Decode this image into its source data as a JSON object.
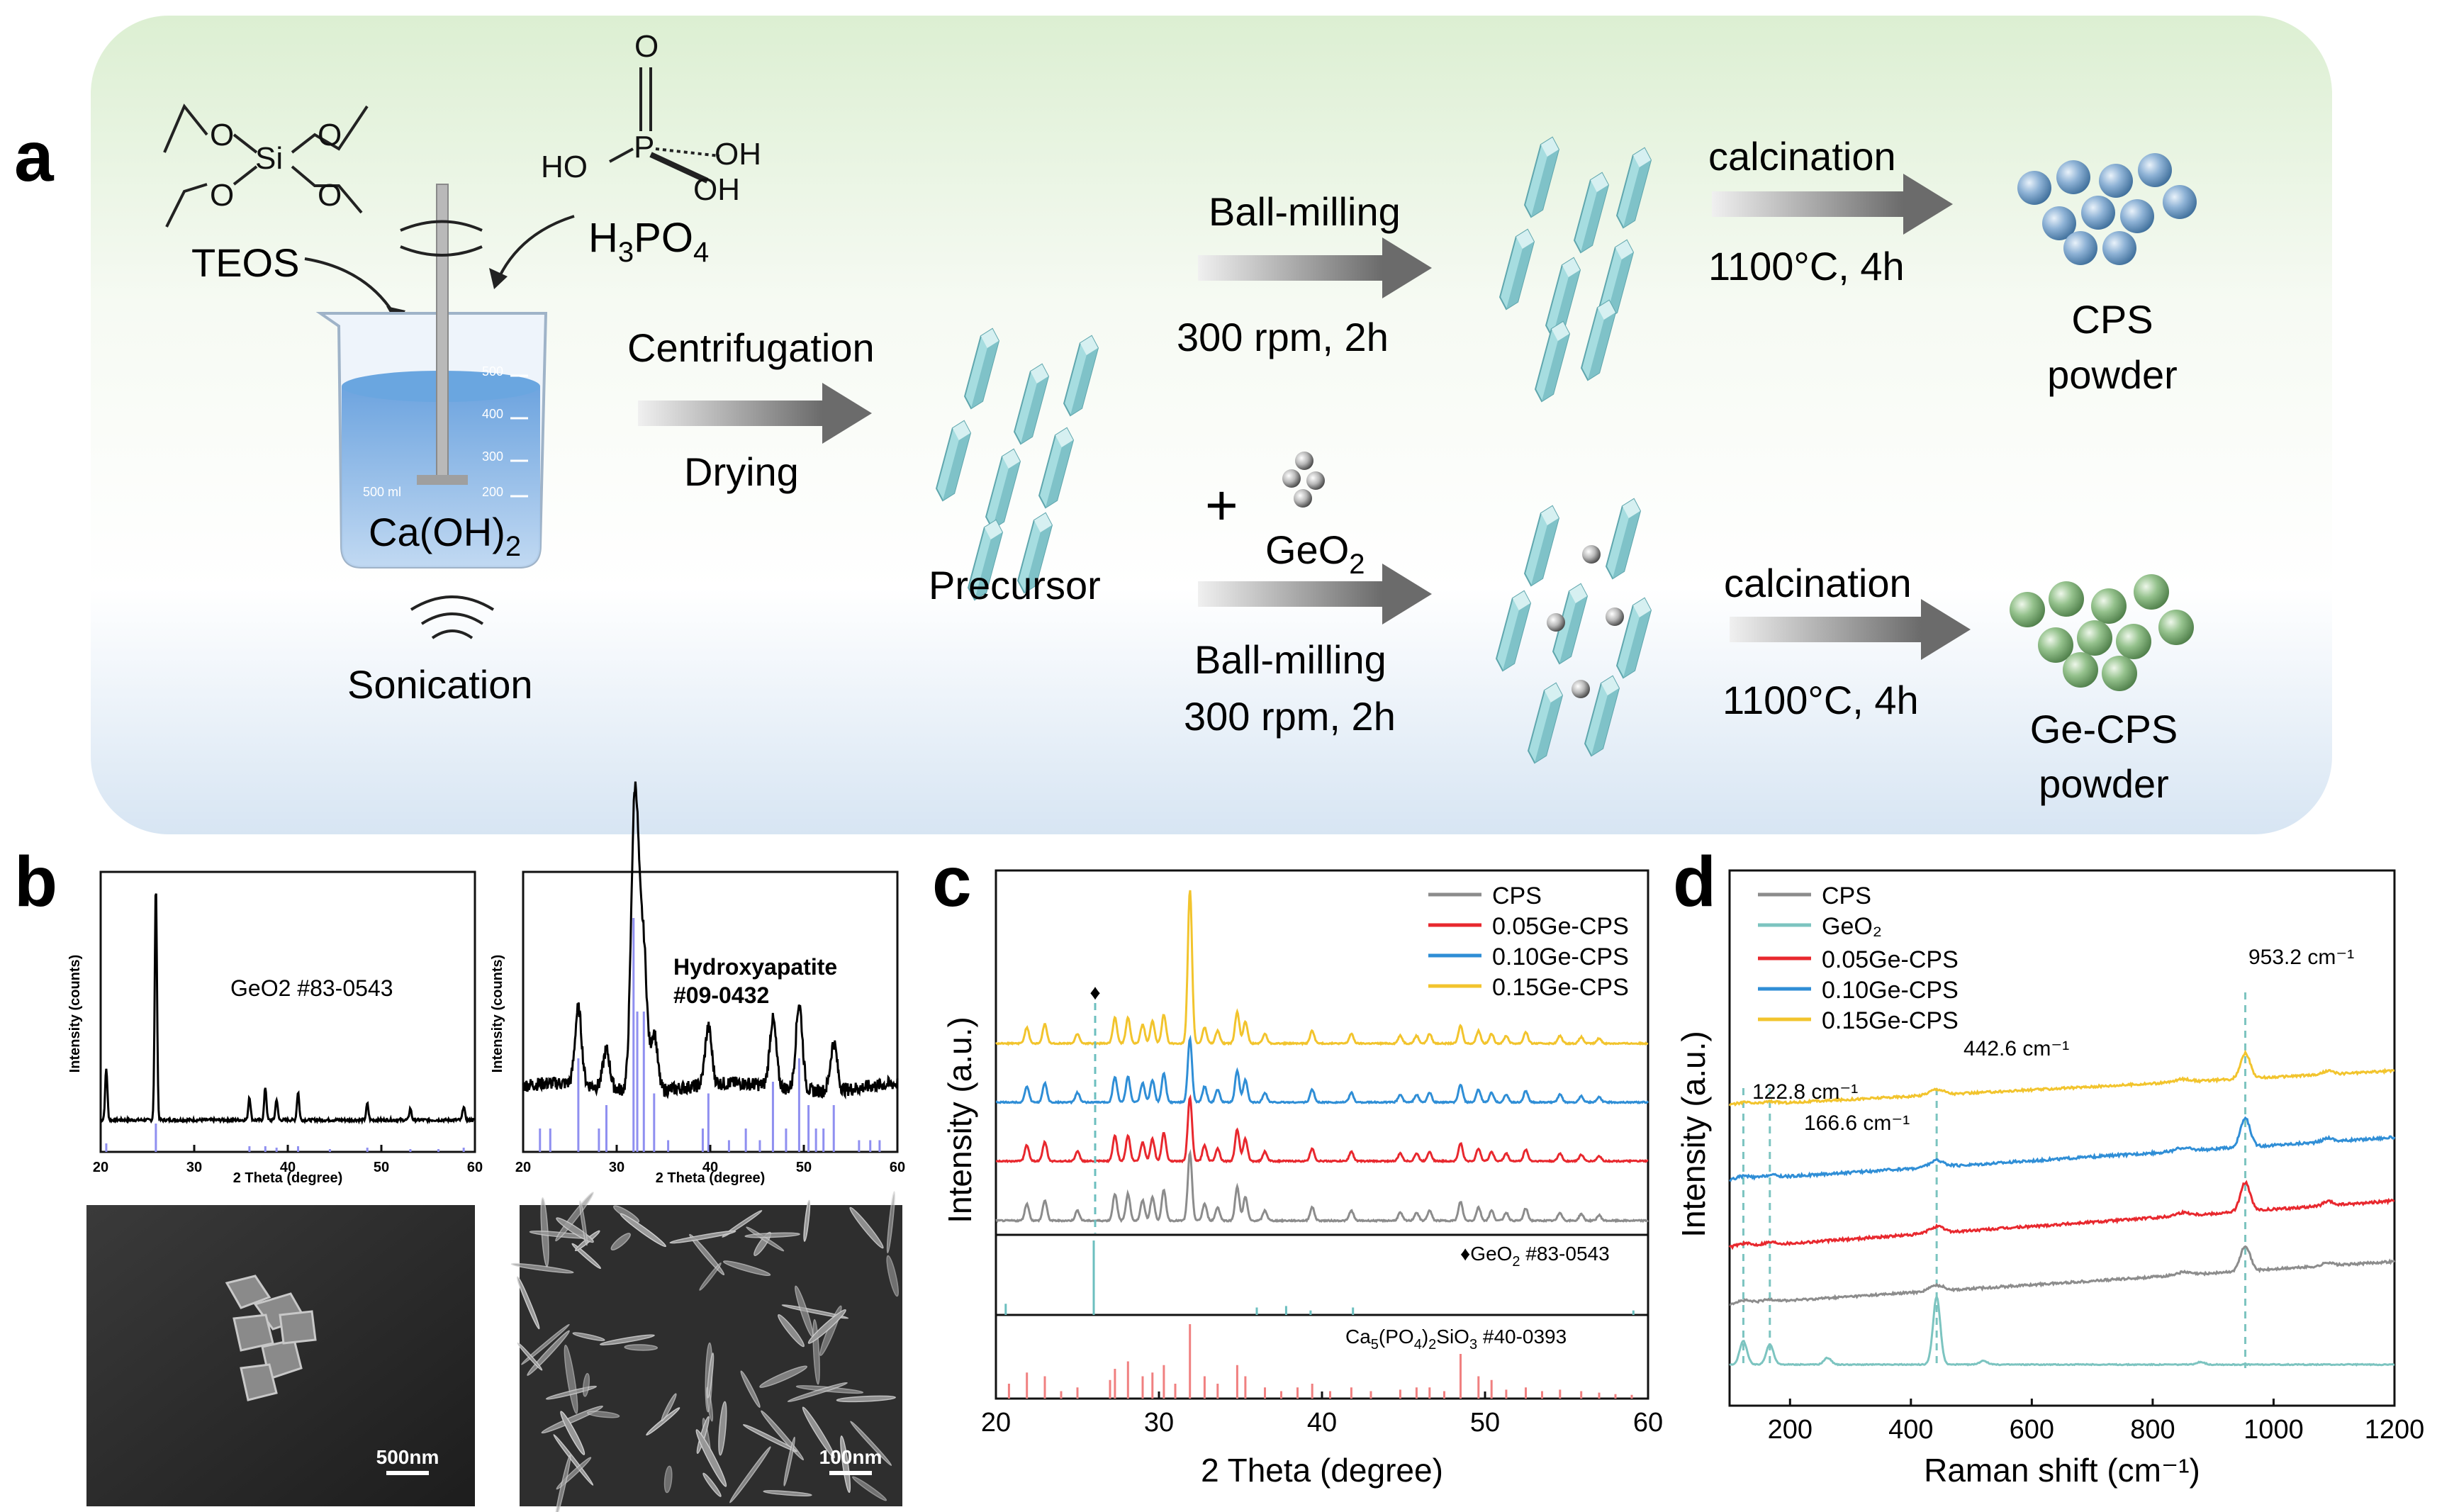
{
  "panel_labels": {
    "a": "a",
    "b": "b",
    "c": "c",
    "d": "d"
  },
  "panel_a": {
    "teos": "TEOS",
    "h3po4": {
      "main": "H",
      "sub1": "3",
      "mid": "PO",
      "sub2": "4"
    },
    "caoh2": {
      "main": "Ca(OH)",
      "sub": "2"
    },
    "sonication": "Sonication",
    "centrifugation": "Centrifugation",
    "drying": "Drying",
    "precursor": "Precursor",
    "ballmill_top": "Ball-milling",
    "rpm_top": "300 rpm, 2h",
    "plus": "+",
    "geo2": {
      "main": "GeO",
      "sub": "2"
    },
    "ballmill_bottom": "Ball-milling",
    "rpm_bottom": "300 rpm, 2h",
    "calc_top": "calcination",
    "temp_top": "1100°C, 4h",
    "calc_bottom": "calcination",
    "temp_bottom": "1100°C, 4h",
    "cps_1": "CPS",
    "cps_2": "powder",
    "gecps_1": "Ge-CPS",
    "gecps_2": "powder",
    "beaker_marks": [
      "500",
      "400",
      "300",
      "200"
    ],
    "beaker_ml": "500 ml",
    "mol_O": "O",
    "mol_Si": "Si",
    "mol_P": "P",
    "mol_HO": "HO",
    "mol_OH": "OH",
    "colors": {
      "cps_sphere": "#7fa6c8",
      "gecps_sphere": "#8fb98a",
      "crystal": "#a6dde0",
      "bg_top": "#e3f1dc",
      "bg_bottom": "#dde8f4"
    }
  },
  "chart_data": [
    {
      "id": "b-left",
      "type": "line",
      "annotation": "GeO2 #83-0543",
      "xlabel": "2 Theta (degree)",
      "ylabel": "Intensity (counts)",
      "xlim": [
        20,
        60
      ],
      "xticks": [
        20,
        30,
        40,
        50,
        60
      ],
      "grid": false,
      "series": [
        {
          "values_note": "pattern",
          "peaks": [
            [
              20.6,
              0.22
            ],
            [
              25.9,
              1.0
            ],
            [
              35.9,
              0.1
            ],
            [
              37.6,
              0.14
            ],
            [
              38.8,
              0.09
            ],
            [
              41.1,
              0.12
            ],
            [
              48.5,
              0.07
            ],
            [
              53.1,
              0.05
            ],
            [
              58.8,
              0.06
            ]
          ]
        }
      ],
      "reference_sticks": [
        [
          20.6,
          0.3
        ],
        [
          25.9,
          1.0
        ],
        [
          35.9,
          0.2
        ],
        [
          37.6,
          0.2
        ],
        [
          38.8,
          0.15
        ],
        [
          41.1,
          0.2
        ],
        [
          44.5,
          0.1
        ],
        [
          48.5,
          0.15
        ],
        [
          53.1,
          0.1
        ],
        [
          56.1,
          0.1
        ],
        [
          58.8,
          0.15
        ]
      ],
      "line_color": "#000000",
      "stick_color": "#8f8ff0"
    },
    {
      "id": "b-right",
      "type": "line",
      "annotation_1": "Hydroxyapatite",
      "annotation_2": "#09-0432",
      "xlabel": "2 Theta (degree)",
      "ylabel": "Intensity (counts)",
      "xlim": [
        20,
        60
      ],
      "xticks": [
        20,
        30,
        40,
        50,
        60
      ],
      "grid": false,
      "peaks": [
        [
          25.9,
          0.4
        ],
        [
          28.9,
          0.2
        ],
        [
          31.8,
          1.0
        ],
        [
          32.2,
          0.85
        ],
        [
          32.9,
          0.7
        ],
        [
          34.0,
          0.3
        ],
        [
          39.8,
          0.3
        ],
        [
          46.7,
          0.35
        ],
        [
          49.5,
          0.45
        ],
        [
          53.2,
          0.25
        ]
      ],
      "reference_sticks": [
        [
          21.8,
          0.1
        ],
        [
          22.9,
          0.1
        ],
        [
          25.9,
          0.4
        ],
        [
          28.1,
          0.1
        ],
        [
          28.9,
          0.2
        ],
        [
          31.8,
          1.0
        ],
        [
          32.2,
          0.6
        ],
        [
          32.9,
          0.6
        ],
        [
          34.0,
          0.25
        ],
        [
          35.5,
          0.05
        ],
        [
          39.2,
          0.1
        ],
        [
          39.8,
          0.25
        ],
        [
          42.0,
          0.05
        ],
        [
          43.8,
          0.1
        ],
        [
          45.3,
          0.05
        ],
        [
          46.7,
          0.3
        ],
        [
          48.1,
          0.1
        ],
        [
          49.5,
          0.4
        ],
        [
          50.5,
          0.2
        ],
        [
          51.3,
          0.1
        ],
        [
          52.1,
          0.1
        ],
        [
          53.2,
          0.2
        ],
        [
          55.9,
          0.05
        ],
        [
          57.1,
          0.05
        ],
        [
          58.1,
          0.05
        ]
      ],
      "line_color": "#000000",
      "stick_color": "#8f8ff0"
    },
    {
      "id": "c",
      "type": "line",
      "xlabel": "2 Theta (degree)",
      "ylabel": "Intensity (a.u.)",
      "xlim": [
        20,
        60
      ],
      "xticks": [
        20,
        30,
        40,
        50,
        60
      ],
      "legend": "top-right",
      "grid": false,
      "series": [
        {
          "name": "CPS",
          "color": "#8c8c8c"
        },
        {
          "name": "0.05Ge-CPS",
          "color": "#e8282e"
        },
        {
          "name": "0.10Ge-CPS",
          "color": "#2f8ed6"
        },
        {
          "name": "0.15Ge-CPS",
          "color": "#f2c42d"
        }
      ],
      "cps_peaks": [
        [
          21.9,
          0.25
        ],
        [
          23.0,
          0.3
        ],
        [
          25.0,
          0.15
        ],
        [
          27.3,
          0.4
        ],
        [
          28.1,
          0.4
        ],
        [
          29.0,
          0.3
        ],
        [
          29.6,
          0.35
        ],
        [
          30.3,
          0.45
        ],
        [
          31.9,
          1.0
        ],
        [
          32.8,
          0.25
        ],
        [
          33.6,
          0.2
        ],
        [
          34.8,
          0.5
        ],
        [
          35.3,
          0.35
        ],
        [
          36.5,
          0.15
        ],
        [
          39.4,
          0.2
        ],
        [
          41.8,
          0.15
        ],
        [
          44.8,
          0.12
        ],
        [
          45.8,
          0.12
        ],
        [
          46.6,
          0.15
        ],
        [
          48.5,
          0.28
        ],
        [
          49.6,
          0.2
        ],
        [
          50.4,
          0.15
        ],
        [
          51.3,
          0.12
        ],
        [
          52.5,
          0.18
        ],
        [
          54.6,
          0.12
        ],
        [
          55.9,
          0.1
        ],
        [
          57.0,
          0.08
        ]
      ],
      "marker": "♦",
      "marker_x": 26.0,
      "ref1_label_pre": "♦GeO",
      "ref1_label_sub": "2",
      "ref1_label_post": " #83-0543",
      "ref1_sticks": [
        [
          20.6,
          0.15
        ],
        [
          26.0,
          1.0
        ],
        [
          36.0,
          0.1
        ],
        [
          37.8,
          0.12
        ],
        [
          39.3,
          0.06
        ],
        [
          41.9,
          0.1
        ],
        [
          59.1,
          0.06
        ]
      ],
      "ref1_color": "#6cbfbf",
      "ref2_label_pre": "Ca",
      "ref2_label_sub1": "5",
      "ref2_label_mid": "(PO",
      "ref2_label_sub2": "4",
      "ref2_label_mid2": ")",
      "ref2_label_sub3": "2",
      "ref2_label_mid3": "SiO",
      "ref2_label_sub4": "3",
      "ref2_label_post": " #40-0393",
      "ref2_sticks": [
        [
          20.8,
          0.2
        ],
        [
          21.9,
          0.35
        ],
        [
          23.0,
          0.3
        ],
        [
          24.0,
          0.1
        ],
        [
          25.0,
          0.15
        ],
        [
          27.0,
          0.25
        ],
        [
          27.3,
          0.4
        ],
        [
          28.1,
          0.5
        ],
        [
          29.0,
          0.3
        ],
        [
          29.6,
          0.35
        ],
        [
          30.3,
          0.45
        ],
        [
          31.0,
          0.2
        ],
        [
          31.9,
          1.0
        ],
        [
          32.8,
          0.3
        ],
        [
          33.6,
          0.2
        ],
        [
          34.8,
          0.45
        ],
        [
          35.3,
          0.3
        ],
        [
          36.5,
          0.15
        ],
        [
          37.5,
          0.1
        ],
        [
          38.5,
          0.15
        ],
        [
          39.4,
          0.2
        ],
        [
          40.5,
          0.1
        ],
        [
          41.8,
          0.15
        ],
        [
          43.0,
          0.1
        ],
        [
          44.8,
          0.12
        ],
        [
          45.8,
          0.15
        ],
        [
          46.6,
          0.15
        ],
        [
          47.5,
          0.1
        ],
        [
          48.5,
          0.6
        ],
        [
          49.6,
          0.3
        ],
        [
          50.4,
          0.25
        ],
        [
          51.3,
          0.12
        ],
        [
          52.5,
          0.15
        ],
        [
          53.5,
          0.1
        ],
        [
          54.6,
          0.12
        ],
        [
          55.9,
          0.1
        ],
        [
          57.0,
          0.08
        ],
        [
          58.0,
          0.06
        ],
        [
          59.0,
          0.05
        ]
      ],
      "ref2_color": "#f08080"
    },
    {
      "id": "d",
      "type": "line",
      "xlabel": "Raman shift (cm⁻¹)",
      "ylabel": "Intensity (a.u.)",
      "xlim": [
        100,
        1200
      ],
      "xticks": [
        200,
        400,
        600,
        800,
        1000,
        1200
      ],
      "legend": "top-left",
      "grid": false,
      "series": [
        {
          "name": "CPS",
          "color": "#8c8c8c"
        },
        {
          "name": "GeO₂",
          "color": "#7cc4c0"
        },
        {
          "name": "0.05Ge-CPS",
          "color": "#e8282e"
        },
        {
          "name": "0.10Ge-CPS",
          "color": "#2f8ed6"
        },
        {
          "name": "0.15Ge-CPS",
          "color": "#f2c42d"
        }
      ],
      "annotations": [
        {
          "x": 122.8,
          "label": "122.8 cm⁻¹"
        },
        {
          "x": 166.6,
          "label": "166.6 cm⁻¹"
        },
        {
          "x": 442.6,
          "label": "442.6 cm⁻¹"
        },
        {
          "x": 953.2,
          "label": "953.2 cm⁻¹"
        }
      ]
    }
  ]
}
